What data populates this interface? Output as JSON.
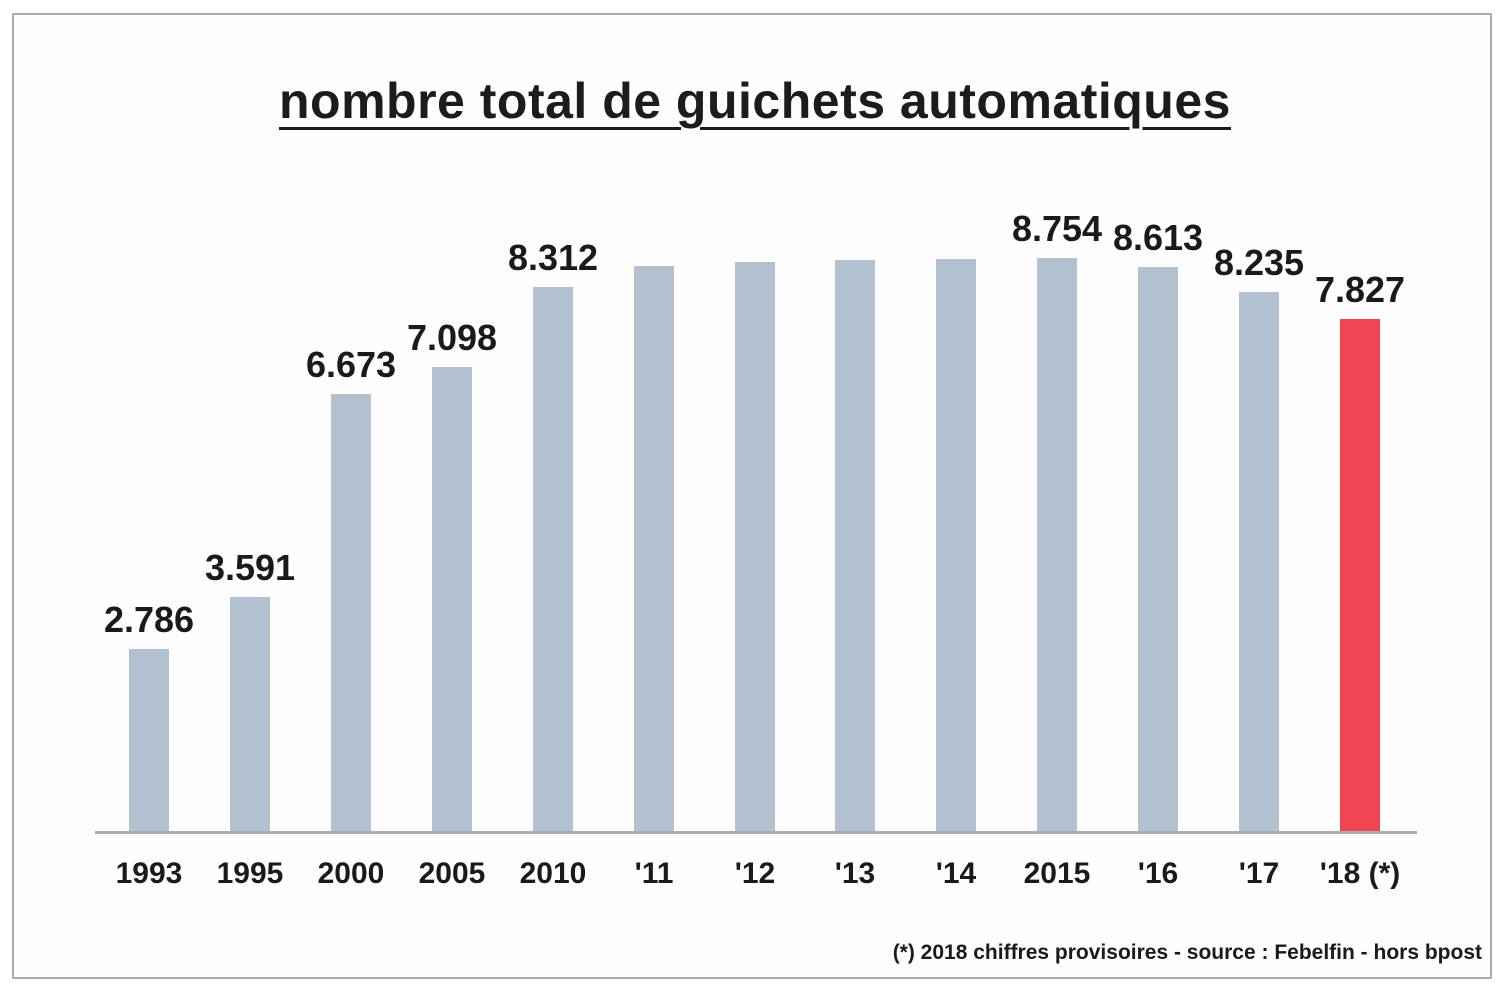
{
  "title": "nombre total de guichets automatiques",
  "footnote": "(*) 2018 chiffres provisoires - source : Febelfin - hors bpost",
  "chart_data": {
    "type": "bar",
    "title": "nombre total de guichets automatiques",
    "categories": [
      "1993",
      "1995",
      "2000",
      "2005",
      "2010",
      "'11",
      "'12",
      "'13",
      "'14",
      "2015",
      "'16",
      "'17",
      "'18 (*)"
    ],
    "values": [
      2786,
      3591,
      6673,
      7098,
      8312,
      8630,
      8700,
      8720,
      8740,
      8754,
      8613,
      8235,
      7827
    ],
    "value_labels": [
      "2.786",
      "3.591",
      "6.673",
      "7.098",
      "8.312",
      "",
      "",
      "",
      "",
      "8.754",
      "8.613",
      "8.235",
      "7.827"
    ],
    "xlabel": "",
    "ylabel": "",
    "ylim": [
      0,
      9700
    ],
    "grid": false,
    "legend": false,
    "bar_color": "#b2c1d0",
    "highlight_color": "#ef4752",
    "highlight_index": 12,
    "axis_color": "#aeaeae",
    "annotation": "(*) 2018 chiffres provisoires - source : Febelfin - hors bpost"
  }
}
